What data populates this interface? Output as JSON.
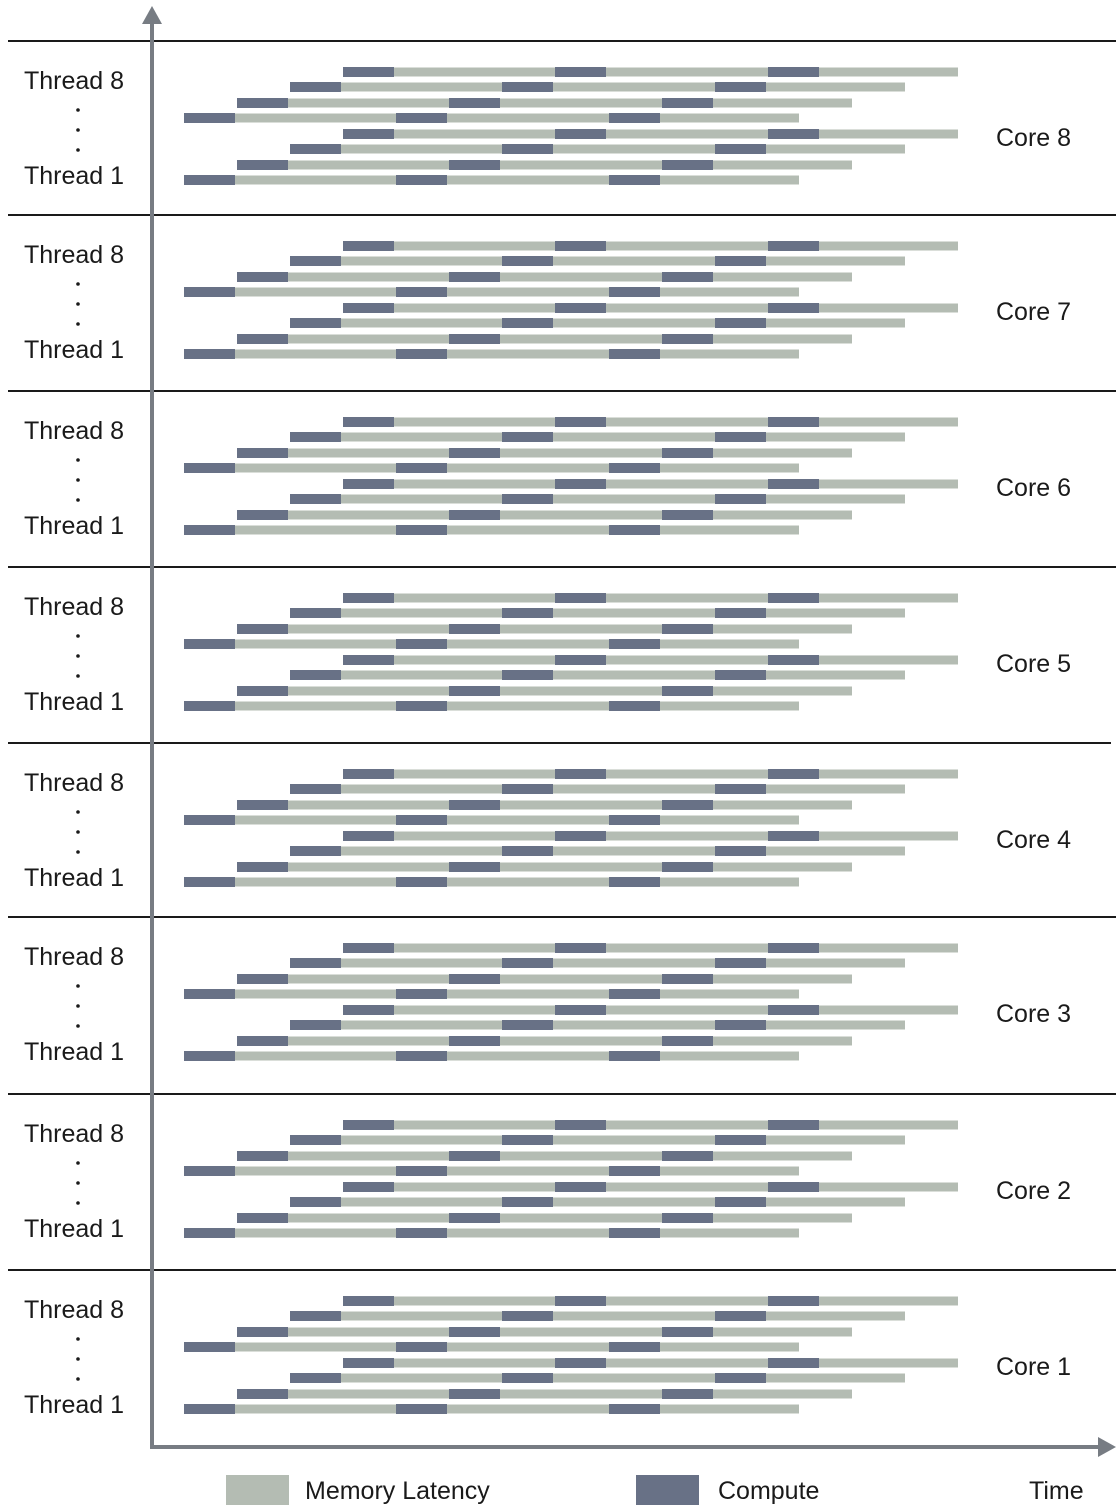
{
  "legend": {
    "memory_label": "Memory Latency",
    "compute_label": "Compute",
    "time_label": "Time"
  },
  "colors": {
    "memory": "#b4bcb3",
    "compute": "#687186",
    "axis": "#777c83",
    "separator": "#1a1a1a"
  },
  "thread_top_label": "Thread 8",
  "thread_bottom_label": "Thread 1",
  "cores": [
    {
      "label": "Core 8"
    },
    {
      "label": "Core 7"
    },
    {
      "label": "Core 6"
    },
    {
      "label": "Core 5"
    },
    {
      "label": "Core 4"
    },
    {
      "label": "Core 3"
    },
    {
      "label": "Core 2"
    },
    {
      "label": "Core 1"
    }
  ]
}
